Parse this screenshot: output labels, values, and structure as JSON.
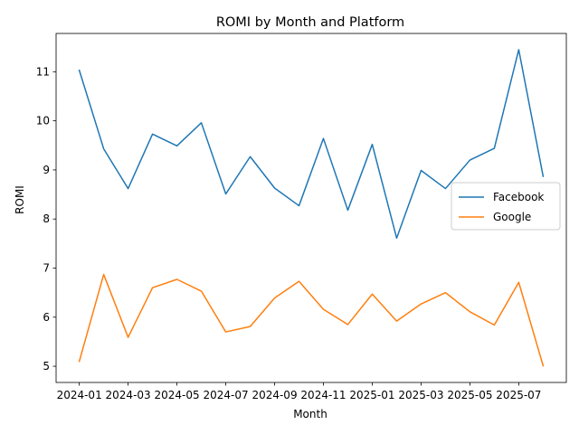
{
  "chart_data": {
    "type": "line",
    "title": "ROMI by Month and Platform",
    "xlabel": "Month",
    "ylabel": "ROMI",
    "x": [
      "2024-01",
      "2024-02",
      "2024-03",
      "2024-04",
      "2024-05",
      "2024-06",
      "2024-07",
      "2024-08",
      "2024-09",
      "2024-10",
      "2024-11",
      "2024-12",
      "2025-01",
      "2025-02",
      "2025-03",
      "2025-04",
      "2025-05",
      "2025-06",
      "2025-07",
      "2025-08"
    ],
    "xticks": [
      "2024-01",
      "2024-03",
      "2024-05",
      "2024-07",
      "2024-09",
      "2024-11",
      "2025-01",
      "2025-03",
      "2025-05",
      "2025-07"
    ],
    "yticks": [
      5,
      6,
      7,
      8,
      9,
      10,
      11
    ],
    "ylim": [
      4.67,
      11.78
    ],
    "grid": false,
    "legend_position": "center-right",
    "series": [
      {
        "name": "Facebook",
        "color": "#1f77b4",
        "values": [
          11.03,
          9.43,
          8.62,
          9.73,
          9.49,
          9.96,
          8.51,
          9.27,
          8.63,
          8.27,
          9.64,
          8.18,
          9.52,
          7.61,
          8.99,
          8.62,
          9.2,
          9.44,
          11.45,
          8.87
        ]
      },
      {
        "name": "Google",
        "color": "#ff7f0e",
        "values": [
          5.1,
          6.87,
          5.59,
          6.6,
          6.77,
          6.53,
          5.7,
          5.81,
          6.39,
          6.73,
          6.16,
          5.85,
          6.47,
          5.92,
          6.27,
          6.5,
          6.11,
          5.84,
          6.71,
          5.01
        ]
      }
    ]
  }
}
